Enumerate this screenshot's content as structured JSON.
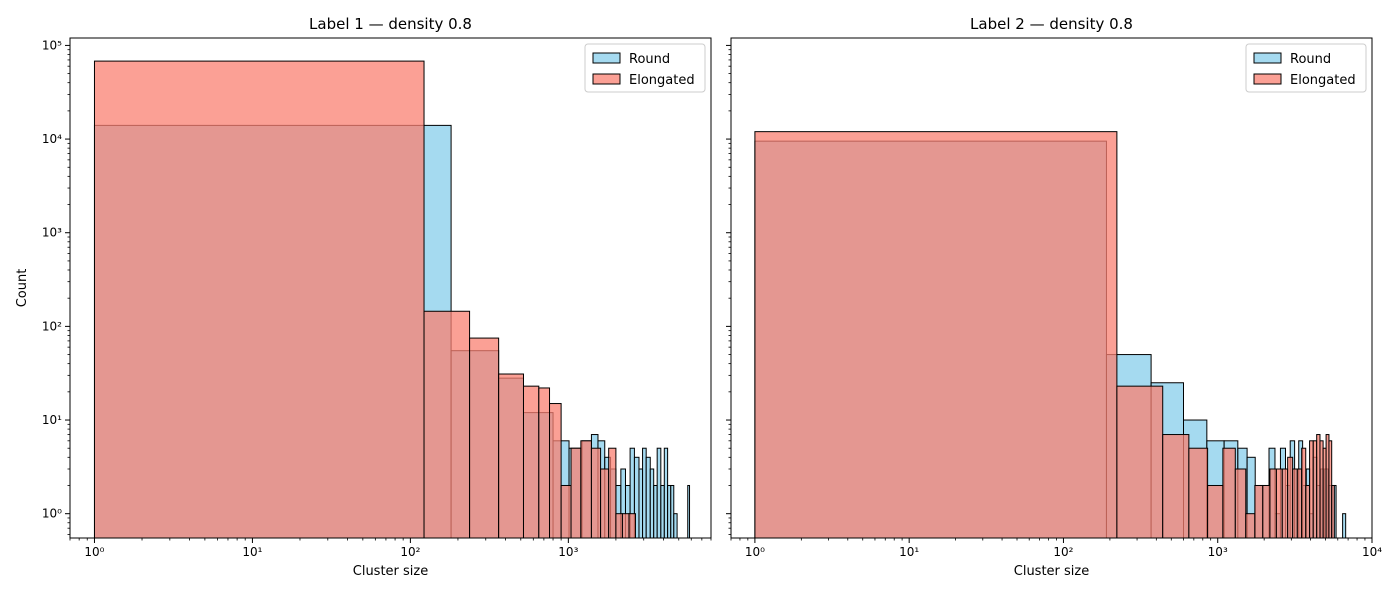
{
  "colors": {
    "round": "#87ceeb",
    "elongated": "#fa8072",
    "edge": "#000000"
  },
  "chart_data": [
    {
      "type": "bar",
      "title": "Label 1 — density 0.8",
      "xlabel": "Cluster size",
      "ylabel": "Count",
      "xscale": "log",
      "yscale": "log",
      "xlim": [
        0.7,
        8000
      ],
      "ylim": [
        0.55,
        120000
      ],
      "xticks": [
        1,
        10,
        100,
        1000
      ],
      "xtick_labels": [
        "10⁰",
        "10¹",
        "10²",
        "10³"
      ],
      "yticks": [
        1,
        10,
        100,
        1000,
        10000,
        100000
      ],
      "ytick_labels": [
        "10⁰",
        "10¹",
        "10²",
        "10³",
        "10⁴",
        "10⁵"
      ],
      "legend": {
        "position": "top-right",
        "entries": [
          "Round",
          "Elongated"
        ]
      },
      "series": [
        {
          "name": "Round",
          "color": "#87ceeb",
          "bins": [
            [
              1,
              181,
              14000
            ],
            [
              181,
              237,
              55
            ],
            [
              237,
              362,
              55
            ],
            [
              362,
              520,
              28
            ],
            [
              520,
              800,
              12
            ],
            [
              800,
              1010,
              6
            ],
            [
              1010,
              1220,
              5
            ],
            [
              1220,
              1400,
              6
            ],
            [
              1400,
              1540,
              7
            ],
            [
              1540,
              1700,
              6
            ],
            [
              1700,
              1850,
              4
            ],
            [
              1850,
              2000,
              3
            ],
            [
              2000,
              2150,
              2
            ],
            [
              2150,
              2300,
              3
            ],
            [
              2300,
              2460,
              2
            ],
            [
              2460,
              2620,
              5
            ],
            [
              2620,
              2800,
              4
            ],
            [
              2800,
              2950,
              3
            ],
            [
              2950,
              3110,
              5
            ],
            [
              3110,
              3300,
              4
            ],
            [
              3300,
              3470,
              3
            ],
            [
              3470,
              3650,
              2
            ],
            [
              3650,
              3850,
              5
            ],
            [
              3850,
              4050,
              2
            ],
            [
              4050,
              4250,
              5
            ],
            [
              4250,
              4450,
              2
            ],
            [
              4450,
              4650,
              2
            ],
            [
              4650,
              4880,
              1
            ],
            [
              5700,
              5850,
              2
            ]
          ]
        },
        {
          "name": "Elongated",
          "color": "#fa8072",
          "bins": [
            [
              1,
              122,
              68000
            ],
            [
              122,
              237,
              145
            ],
            [
              237,
              362,
              75
            ],
            [
              362,
              520,
              31
            ],
            [
              520,
              650,
              23
            ],
            [
              650,
              760,
              22
            ],
            [
              760,
              900,
              15
            ],
            [
              900,
              1040,
              2
            ],
            [
              1040,
              1200,
              5
            ],
            [
              1200,
              1400,
              6
            ],
            [
              1400,
              1600,
              5
            ],
            [
              1600,
              1800,
              3
            ],
            [
              1800,
              2000,
              5
            ],
            [
              2000,
              2200,
              1
            ],
            [
              2200,
              2420,
              1
            ],
            [
              2420,
              2660,
              1
            ]
          ]
        }
      ]
    },
    {
      "type": "bar",
      "title": "Label 2 — density 0.8",
      "xlabel": "Cluster size",
      "ylabel": "",
      "xscale": "log",
      "yscale": "log",
      "xlim": [
        0.7,
        10000
      ],
      "ylim": [
        0.55,
        120000
      ],
      "xticks": [
        1,
        10,
        100,
        1000,
        10000
      ],
      "xtick_labels": [
        "10⁰",
        "10¹",
        "10²",
        "10³",
        "10⁴"
      ],
      "yticks": [
        1,
        10,
        100,
        1000,
        10000,
        100000
      ],
      "ytick_labels": [
        "",
        "",
        "",
        "",
        "",
        ""
      ],
      "legend": {
        "position": "top-right",
        "entries": [
          "Round",
          "Elongated"
        ]
      },
      "series": [
        {
          "name": "Round",
          "color": "#87ceeb",
          "bins": [
            [
              1,
              190,
              9500
            ],
            [
              190,
              370,
              50
            ],
            [
              370,
              600,
              25
            ],
            [
              600,
              850,
              10
            ],
            [
              850,
              1100,
              6
            ],
            [
              1100,
              1350,
              6
            ],
            [
              1350,
              1550,
              5
            ],
            [
              1550,
              1750,
              4
            ],
            [
              1750,
              1950,
              2
            ],
            [
              1950,
              2150,
              2
            ],
            [
              2150,
              2350,
              5
            ],
            [
              2350,
              2550,
              1
            ],
            [
              2550,
              2750,
              5
            ],
            [
              2750,
              2950,
              2
            ],
            [
              2950,
              3150,
              6
            ],
            [
              3150,
              3350,
              3
            ],
            [
              3350,
              3550,
              6
            ],
            [
              3550,
              3750,
              2
            ],
            [
              3750,
              3950,
              3
            ],
            [
              3950,
              4150,
              1
            ],
            [
              4150,
              4400,
              4
            ],
            [
              4400,
              4650,
              2
            ],
            [
              4650,
              4900,
              3
            ],
            [
              4900,
              5200,
              3
            ],
            [
              5200,
              5500,
              2
            ],
            [
              5500,
              5850,
              2
            ],
            [
              6450,
              6750,
              1
            ]
          ]
        },
        {
          "name": "Elongated",
          "color": "#fa8072",
          "bins": [
            [
              1,
              222,
              12000
            ],
            [
              222,
              440,
              23
            ],
            [
              440,
              650,
              7
            ],
            [
              650,
              860,
              5
            ],
            [
              860,
              1080,
              2
            ],
            [
              1080,
              1300,
              5
            ],
            [
              1300,
              1520,
              3
            ],
            [
              1520,
              1740,
              1
            ],
            [
              1740,
              1960,
              2
            ],
            [
              1960,
              2180,
              2
            ],
            [
              2180,
              2400,
              3
            ],
            [
              2400,
              2620,
              3
            ],
            [
              2620,
              2840,
              3
            ],
            [
              2840,
              3060,
              4
            ],
            [
              3060,
              3280,
              3
            ],
            [
              3280,
              3500,
              3
            ],
            [
              3500,
              3720,
              5
            ],
            [
              3720,
              3940,
              2
            ],
            [
              3940,
              4160,
              6
            ],
            [
              4160,
              4380,
              6
            ],
            [
              4380,
              4600,
              7
            ],
            [
              4600,
              4820,
              6
            ],
            [
              4820,
              5040,
              5
            ],
            [
              5040,
              5260,
              7
            ],
            [
              5260,
              5480,
              6
            ],
            [
              5480,
              5700,
              2
            ]
          ]
        }
      ]
    }
  ]
}
